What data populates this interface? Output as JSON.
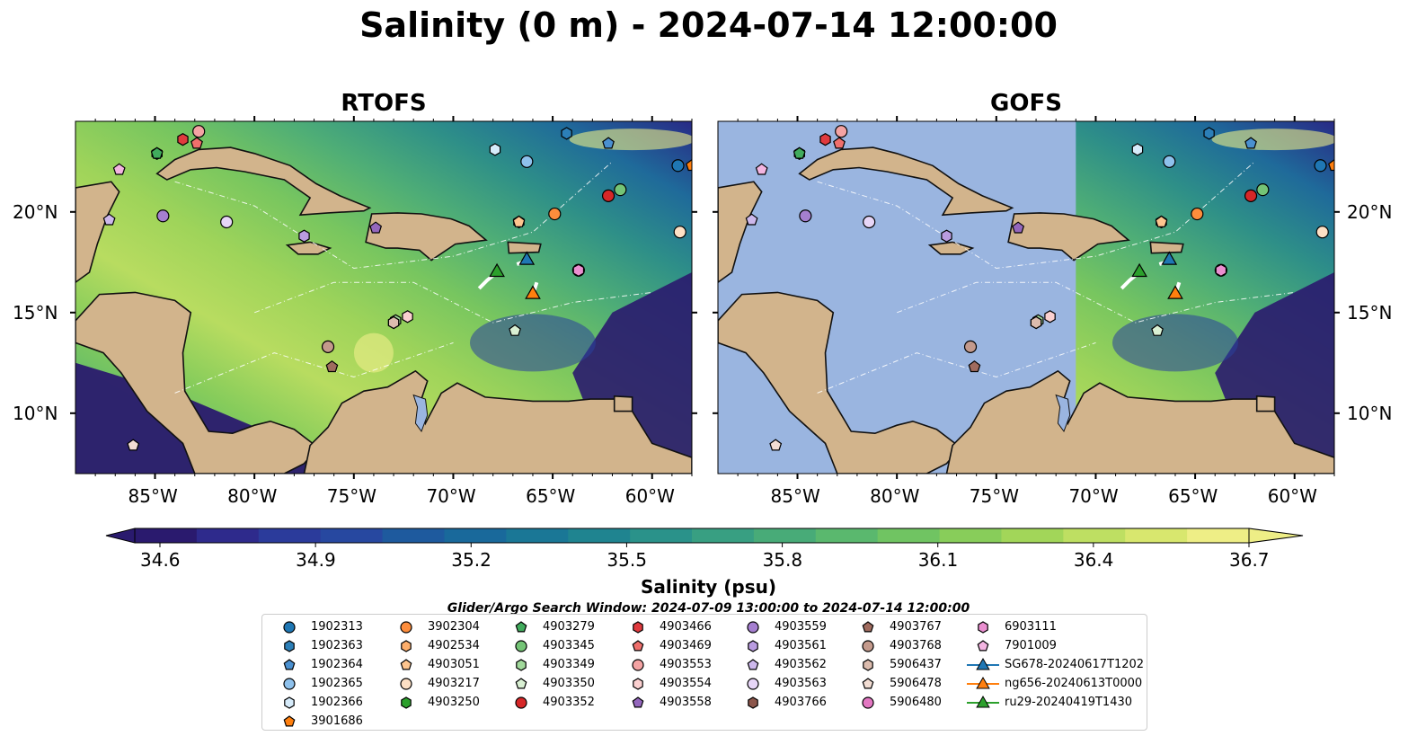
{
  "title": "Salinity (0 m) - 2024-07-14 12:00:00",
  "panels": [
    {
      "title": "RTOFS"
    },
    {
      "title": "GOFS"
    }
  ],
  "axes": {
    "x_ticks": [
      "85°W",
      "80°W",
      "75°W",
      "70°W",
      "65°W",
      "60°W"
    ],
    "y_ticks": [
      "20°N",
      "15°N",
      "10°N"
    ],
    "lon_range": [
      -89,
      -58
    ],
    "lat_range": [
      7,
      24.5
    ]
  },
  "colorbar": {
    "label": "Salinity (psu)",
    "ticks": [
      "34.6",
      "34.9",
      "35.2",
      "35.5",
      "35.8",
      "36.1",
      "36.4",
      "36.7"
    ],
    "colors": [
      "#2a1a6e",
      "#2e2a8c",
      "#2b3b9b",
      "#2748a0",
      "#1e5a9e",
      "#19699b",
      "#1a7796",
      "#1f8490",
      "#2a928a",
      "#389f82",
      "#48ab78",
      "#5ab86e",
      "#70c462",
      "#88cd5a",
      "#a2d659",
      "#bedf62",
      "#d8e76e",
      "#eeee86"
    ]
  },
  "search_window": "Glider/Argo Search Window: 2024-07-09 13:00:00 to 2024-07-14 12:00:00",
  "colors": {
    "land": "#d2b48c",
    "gofs_mask": "#9ab5e0",
    "ocean_dark": "#2a1a6e"
  },
  "legend": [
    {
      "label": "1902313",
      "marker": "circle",
      "color": "#1f77b4"
    },
    {
      "label": "1902363",
      "marker": "hexagon",
      "color": "#2c7fb8"
    },
    {
      "label": "1902364",
      "marker": "pentagon",
      "color": "#4a90d0"
    },
    {
      "label": "1902365",
      "marker": "circle",
      "color": "#8ec1ec"
    },
    {
      "label": "1902366",
      "marker": "hexagon",
      "color": "#d6ebfa"
    },
    {
      "label": "3901686",
      "marker": "pentagon",
      "color": "#ff7f0e"
    },
    {
      "label": "3902304",
      "marker": "circle",
      "color": "#fd8d3c"
    },
    {
      "label": "4902534",
      "marker": "hexagon",
      "color": "#fdae6b"
    },
    {
      "label": "4903051",
      "marker": "pentagon",
      "color": "#fdc58f"
    },
    {
      "label": "4903217",
      "marker": "circle",
      "color": "#fde0c5"
    },
    {
      "label": "4903250",
      "marker": "hexagon",
      "color": "#2ca02c"
    },
    {
      "label": "4903279",
      "marker": "pentagon",
      "color": "#41ab5d"
    },
    {
      "label": "4903345",
      "marker": "circle",
      "color": "#74c476"
    },
    {
      "label": "4903349",
      "marker": "hexagon",
      "color": "#a1d99b"
    },
    {
      "label": "4903350",
      "marker": "pentagon",
      "color": "#d9f0d3"
    },
    {
      "label": "4903352",
      "marker": "circle",
      "color": "#d62728"
    },
    {
      "label": "4903466",
      "marker": "hexagon",
      "color": "#e03a3e"
    },
    {
      "label": "4903469",
      "marker": "pentagon",
      "color": "#ef6f6c"
    },
    {
      "label": "4903553",
      "marker": "circle",
      "color": "#f4a3a3"
    },
    {
      "label": "4903554",
      "marker": "hexagon",
      "color": "#fbd0d0"
    },
    {
      "label": "4903558",
      "marker": "pentagon",
      "color": "#9467bd"
    },
    {
      "label": "4903559",
      "marker": "circle",
      "color": "#a57fd0"
    },
    {
      "label": "4903561",
      "marker": "hexagon",
      "color": "#b99ce0"
    },
    {
      "label": "4903562",
      "marker": "pentagon",
      "color": "#cdb8ec"
    },
    {
      "label": "4903563",
      "marker": "circle",
      "color": "#e7d6f7"
    },
    {
      "label": "4903766",
      "marker": "hexagon",
      "color": "#8c564b"
    },
    {
      "label": "4903767",
      "marker": "pentagon",
      "color": "#a06b5e"
    },
    {
      "label": "4903768",
      "marker": "circle",
      "color": "#c49a8c"
    },
    {
      "label": "5906437",
      "marker": "hexagon",
      "color": "#dcbcae"
    },
    {
      "label": "5906478",
      "marker": "pentagon",
      "color": "#f2ddd3"
    },
    {
      "label": "5906480",
      "marker": "circle",
      "color": "#e377c2"
    },
    {
      "label": "6903111",
      "marker": "hexagon",
      "color": "#ea8fd0"
    },
    {
      "label": "7901009",
      "marker": "pentagon",
      "color": "#f3b5e1"
    },
    {
      "label": "SG678-20240617T1202",
      "marker": "triangle",
      "color": "#1f77b4"
    },
    {
      "label": "ng656-20240613T0000",
      "marker": "triangle",
      "color": "#ff7f0e"
    },
    {
      "label": "ru29-20240419T1430",
      "marker": "triangle",
      "color": "#2ca02c"
    }
  ],
  "chart_data": {
    "type": "map",
    "variable": "Salinity",
    "depth": "0 m",
    "units": "psu",
    "time": "2024-07-14 12:00:00",
    "panels": [
      "RTOFS",
      "GOFS"
    ],
    "lon_range": [
      -89,
      -58
    ],
    "lat_range": [
      7,
      24.5
    ],
    "colorbar_range": [
      34.6,
      36.7
    ],
    "gofs_mask_lon_max": -71,
    "argo_floats": [
      {
        "id": "1902313",
        "lon": -58.7,
        "lat": 22.3,
        "marker": "circle"
      },
      {
        "id": "1902363",
        "lon": -64.3,
        "lat": 23.9,
        "marker": "hexagon"
      },
      {
        "id": "1902364",
        "lon": -62.2,
        "lat": 23.4,
        "marker": "pentagon"
      },
      {
        "id": "1902365",
        "lon": -66.3,
        "lat": 22.5,
        "marker": "circle"
      },
      {
        "id": "1902366",
        "lon": -67.9,
        "lat": 23.1,
        "marker": "hexagon"
      },
      {
        "id": "3901686",
        "lon": -58.0,
        "lat": 22.3,
        "marker": "pentagon"
      },
      {
        "id": "3902304",
        "lon": -64.9,
        "lat": 19.9,
        "marker": "circle"
      },
      {
        "id": "4902534",
        "lon": -66.7,
        "lat": 19.5,
        "marker": "hexagon"
      },
      {
        "id": "4903051",
        "lon": -66.7,
        "lat": 19.5,
        "marker": "pentagon"
      },
      {
        "id": "4903217",
        "lon": -58.6,
        "lat": 19.0,
        "marker": "circle"
      },
      {
        "id": "4903250",
        "lon": -84.9,
        "lat": 22.9,
        "marker": "hexagon"
      },
      {
        "id": "4903279",
        "lon": -84.9,
        "lat": 22.9,
        "marker": "pentagon"
      },
      {
        "id": "4903345",
        "lon": -61.6,
        "lat": 21.1,
        "marker": "circle"
      },
      {
        "id": "4903349",
        "lon": -72.9,
        "lat": 14.6,
        "marker": "hexagon"
      },
      {
        "id": "4903350",
        "lon": -66.9,
        "lat": 14.1,
        "marker": "pentagon"
      },
      {
        "id": "4903352",
        "lon": -62.2,
        "lat": 20.8,
        "marker": "circle"
      },
      {
        "id": "4903466",
        "lon": -83.6,
        "lat": 23.6,
        "marker": "hexagon"
      },
      {
        "id": "4903469",
        "lon": -82.9,
        "lat": 23.4,
        "marker": "pentagon"
      },
      {
        "id": "4903553",
        "lon": -82.8,
        "lat": 24.0,
        "marker": "circle"
      },
      {
        "id": "4903554",
        "lon": -72.3,
        "lat": 14.8,
        "marker": "hexagon"
      },
      {
        "id": "4903558",
        "lon": -73.9,
        "lat": 19.2,
        "marker": "pentagon"
      },
      {
        "id": "4903559",
        "lon": -84.6,
        "lat": 19.8,
        "marker": "circle"
      },
      {
        "id": "4903561",
        "lon": -77.5,
        "lat": 18.8,
        "marker": "hexagon"
      },
      {
        "id": "4903562",
        "lon": -87.3,
        "lat": 19.6,
        "marker": "pentagon"
      },
      {
        "id": "4903563",
        "lon": -81.4,
        "lat": 19.5,
        "marker": "circle"
      },
      {
        "id": "4903766",
        "lon": -73.0,
        "lat": 14.5,
        "marker": "hexagon"
      },
      {
        "id": "4903767",
        "lon": -76.1,
        "lat": 12.3,
        "marker": "pentagon"
      },
      {
        "id": "4903768",
        "lon": -76.3,
        "lat": 13.3,
        "marker": "circle"
      },
      {
        "id": "5906437",
        "lon": -73.0,
        "lat": 14.5,
        "marker": "hexagon"
      },
      {
        "id": "5906478",
        "lon": -86.1,
        "lat": 8.4,
        "marker": "pentagon"
      },
      {
        "id": "5906480",
        "lon": -63.7,
        "lat": 17.1,
        "marker": "circle"
      },
      {
        "id": "6903111",
        "lon": -63.7,
        "lat": 17.1,
        "marker": "hexagon"
      },
      {
        "id": "7901009",
        "lon": -86.8,
        "lat": 22.1,
        "marker": "pentagon"
      }
    ],
    "gliders": [
      {
        "id": "SG678-20240617T1202",
        "lon": -66.3,
        "lat": 17.6,
        "track": [
          [
            -66.8,
            17.4
          ],
          [
            -66.5,
            17.5
          ],
          [
            -66.3,
            17.6
          ]
        ]
      },
      {
        "id": "ng656-20240613T0000",
        "lon": -66.0,
        "lat": 15.9,
        "track": [
          [
            -65.8,
            16.5
          ],
          [
            -65.9,
            16.2
          ],
          [
            -66.0,
            15.9
          ]
        ]
      },
      {
        "id": "ru29-20240419T1430",
        "lon": -67.8,
        "lat": 17.0,
        "track": [
          [
            -68.7,
            16.2
          ],
          [
            -68.3,
            16.6
          ],
          [
            -67.8,
            17.0
          ]
        ]
      }
    ]
  }
}
